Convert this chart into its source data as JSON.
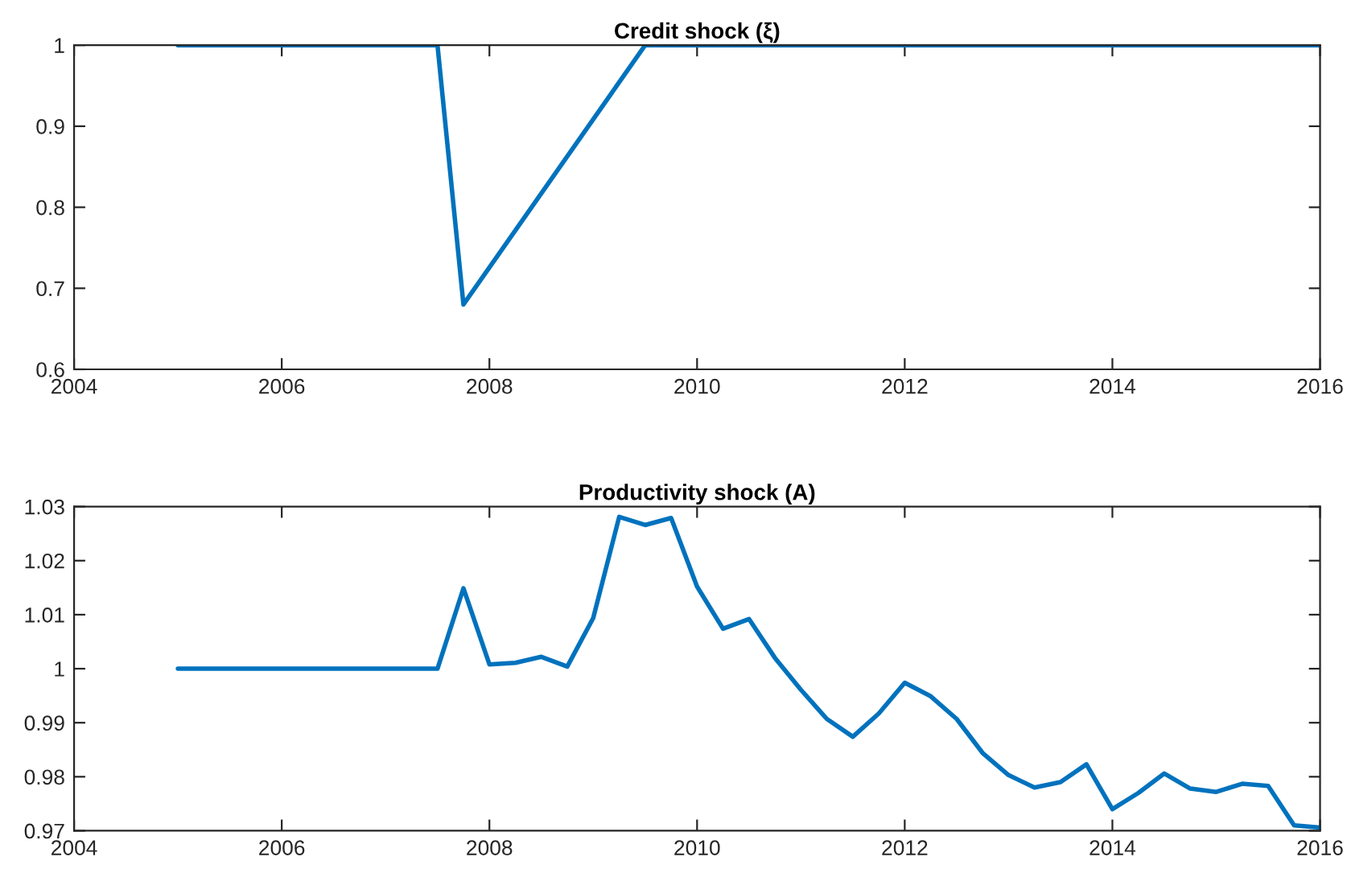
{
  "chart_data": [
    {
      "type": "line",
      "title": "Credit shock (ξ)",
      "x": [
        2005,
        2007.5,
        2007.75,
        2009.5,
        2016
      ],
      "series": [
        {
          "color": "#0072bd",
          "values": [
            1,
            1,
            0.68,
            1,
            1
          ]
        }
      ],
      "xlim": [
        2004,
        2016
      ],
      "xticks": [
        2004,
        2006,
        2008,
        2010,
        2012,
        2014,
        2016
      ],
      "ylim": [
        0.6,
        1
      ],
      "yticks": [
        0.6,
        0.7,
        0.8,
        0.9,
        1
      ],
      "grid": false,
      "marker": "none",
      "line_style": "solid"
    },
    {
      "type": "line",
      "title": "Productivity shock (A)",
      "x": [
        2005,
        2005.25,
        2005.5,
        2005.75,
        2006,
        2006.25,
        2006.5,
        2006.75,
        2007,
        2007.25,
        2007.5,
        2007.75,
        2008,
        2008.25,
        2008.5,
        2008.75,
        2009,
        2009.25,
        2009.5,
        2009.75,
        2010,
        2010.25,
        2010.5,
        2010.75,
        2011,
        2011.25,
        2011.5,
        2011.75,
        2012,
        2012.25,
        2012.5,
        2012.75,
        2013,
        2013.25,
        2013.5,
        2013.75,
        2014,
        2014.25,
        2014.5,
        2014.75,
        2015,
        2015.25,
        2015.5,
        2015.75,
        2016
      ],
      "series": [
        {
          "color": "#0072bd",
          "values": [
            1,
            1,
            1,
            1,
            1,
            1,
            1,
            1,
            1,
            1,
            1,
            1.0149,
            1.0008,
            1.0011,
            1.0022,
            1.0004,
            1.0094,
            1.0281,
            1.0266,
            1.0279,
            1.0152,
            1.0074,
            1.0092,
            1.002,
            0.9961,
            0.9907,
            0.9874,
            0.9917,
            0.9974,
            0.9949,
            0.9907,
            0.9844,
            0.9803,
            0.978,
            0.979,
            0.9823,
            0.974,
            0.977,
            0.9806,
            0.9778,
            0.9772,
            0.9787,
            0.9783,
            0.971,
            0.9706
          ]
        }
      ],
      "xlim": [
        2004,
        2016
      ],
      "xticks": [
        2004,
        2006,
        2008,
        2010,
        2012,
        2014,
        2016
      ],
      "ylim": [
        0.97,
        1.03
      ],
      "yticks": [
        0.97,
        0.98,
        0.99,
        1,
        1.01,
        1.02,
        1.03
      ],
      "grid": false,
      "marker": "none",
      "line_style": "solid"
    }
  ]
}
